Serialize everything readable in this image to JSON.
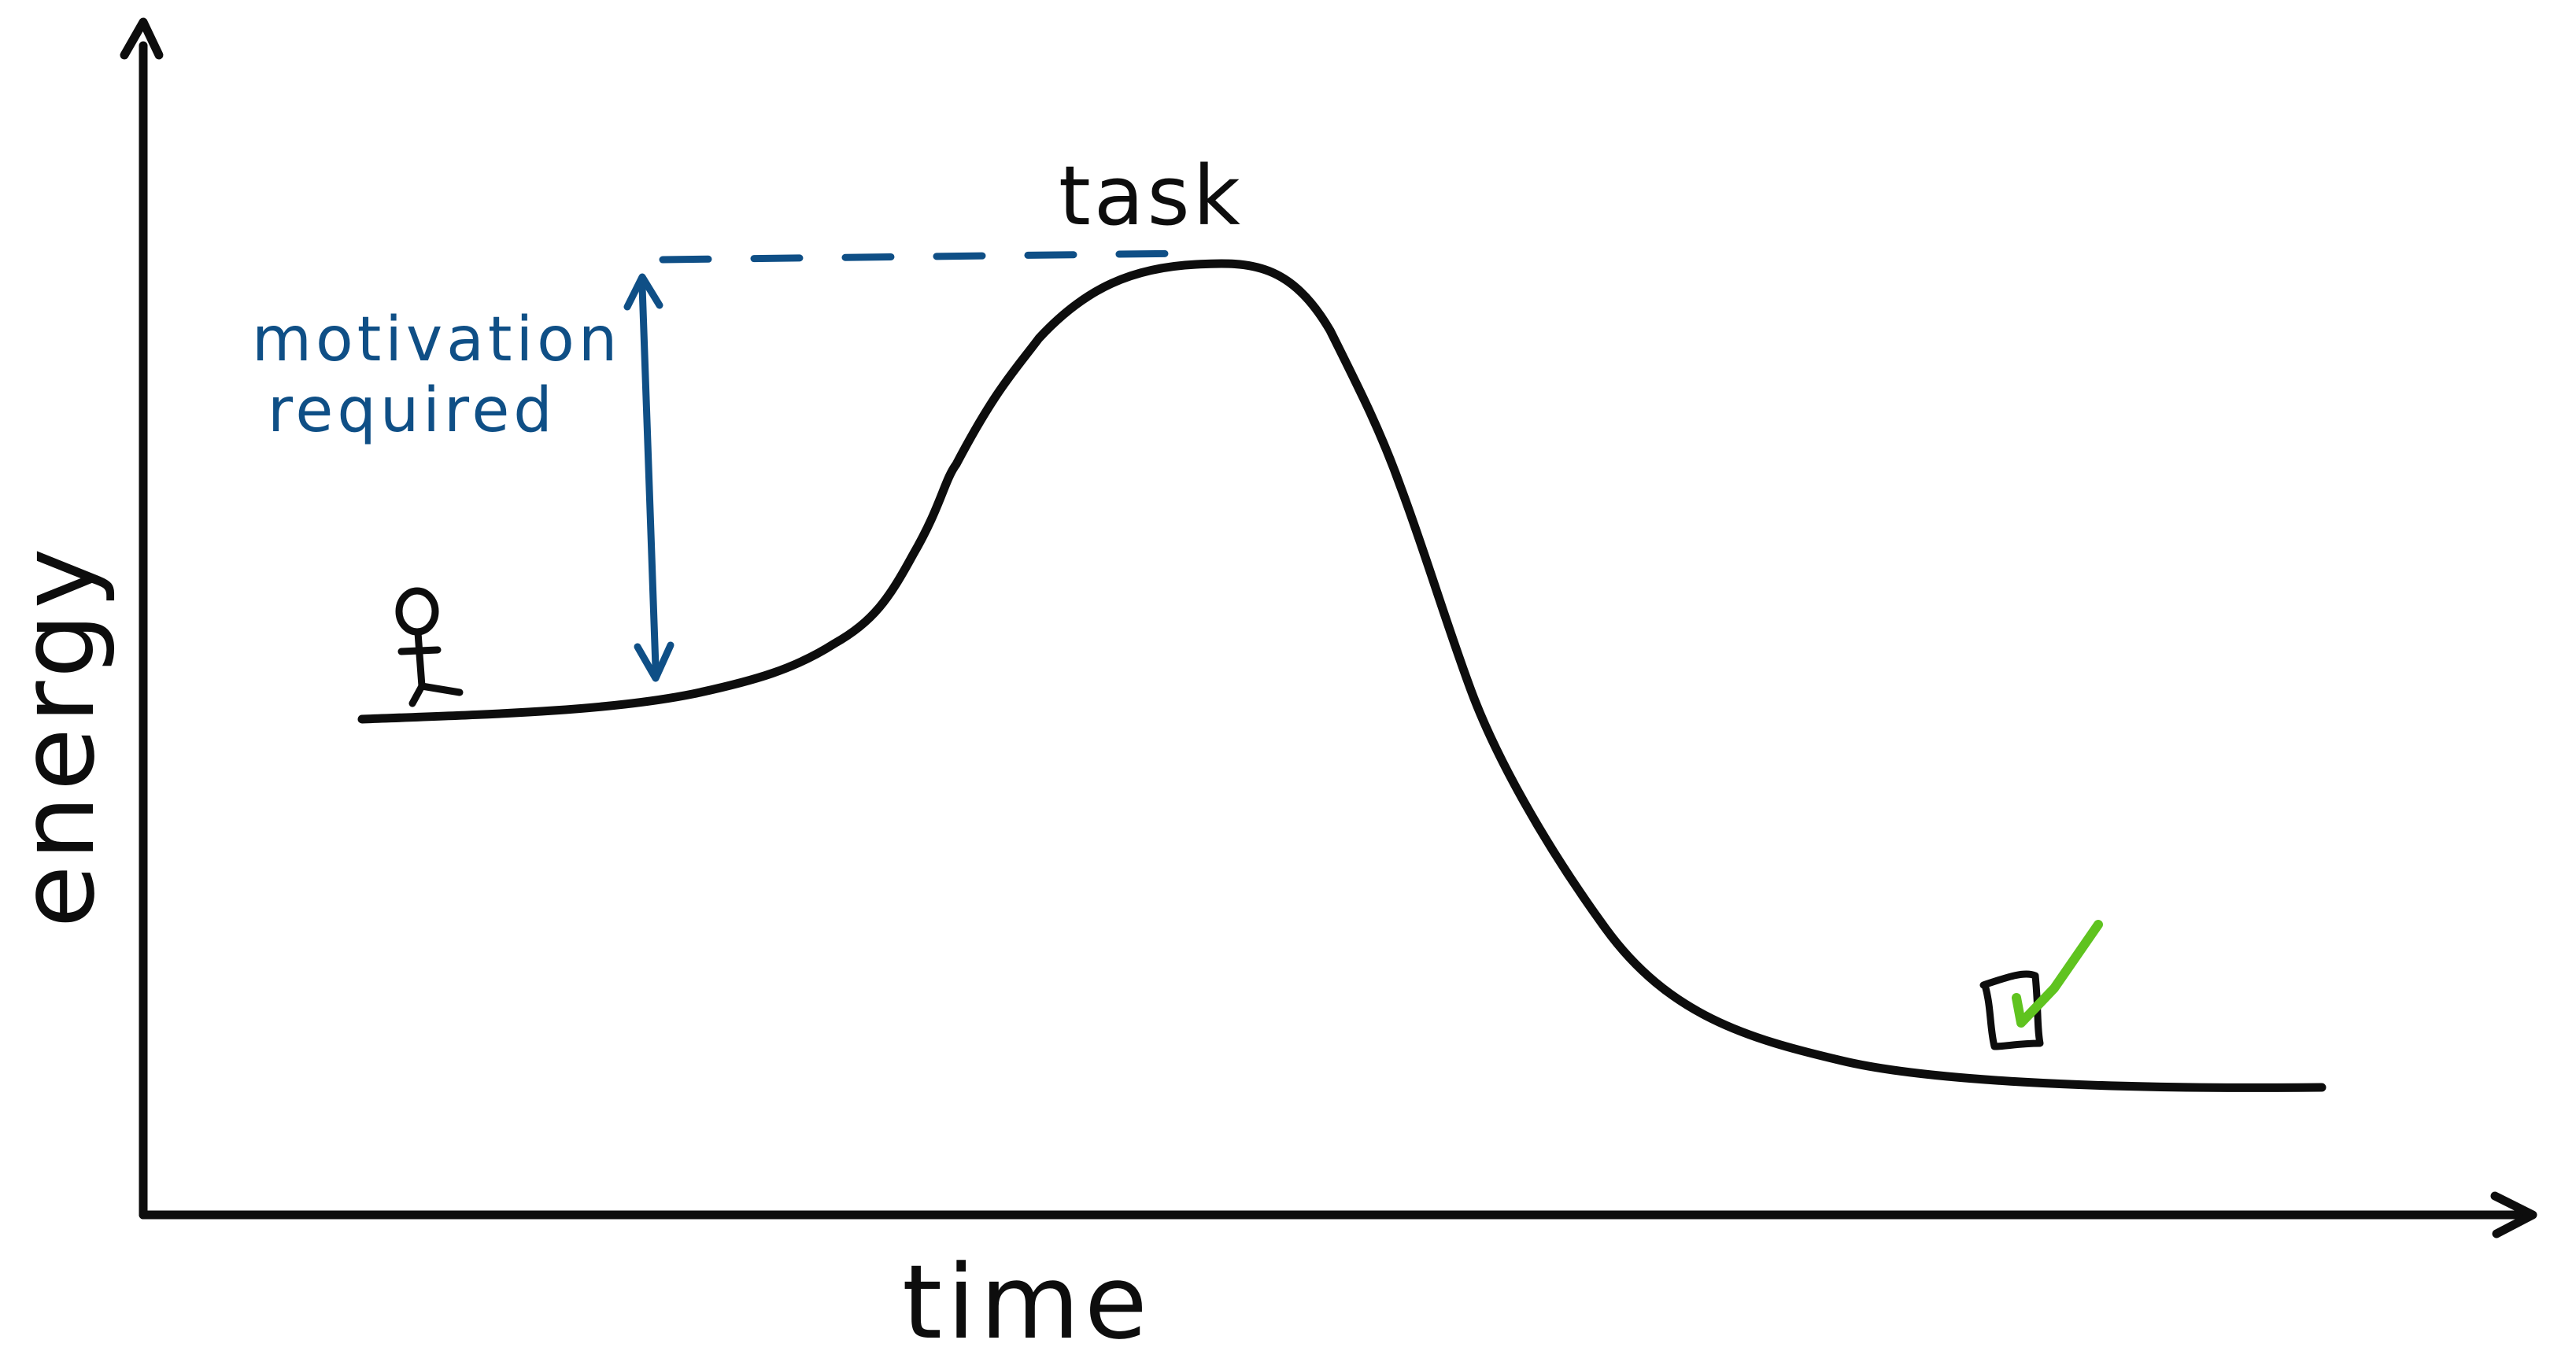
{
  "labels": {
    "x_axis": "time",
    "y_axis": "energy",
    "peak": "task",
    "motivation_line1": "motivation",
    "motivation_line2": "required"
  },
  "icons": {
    "person": "stick-figure-icon",
    "done": "checkbox-checked-icon"
  },
  "colors": {
    "ink": "#0d0d0d",
    "annotation": "#0f4f86",
    "check": "#5fc31f",
    "background": "#ffffff"
  }
}
